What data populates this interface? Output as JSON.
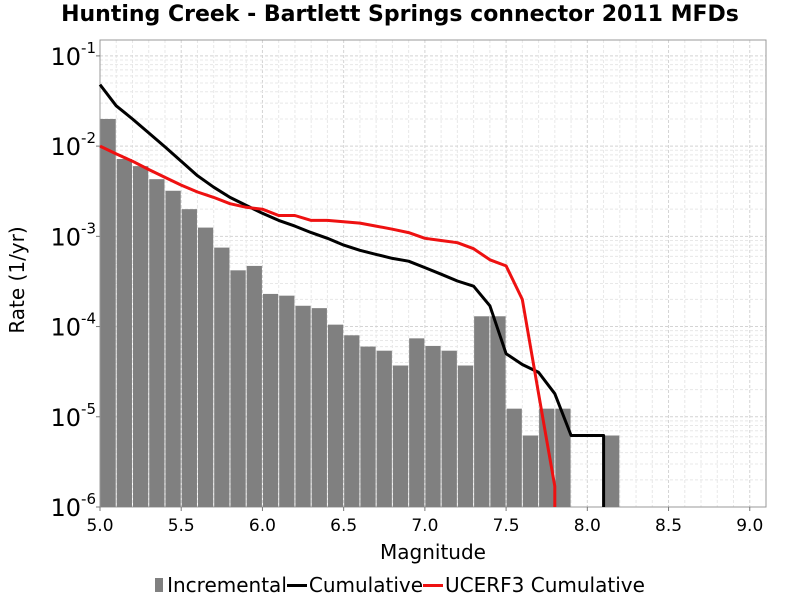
{
  "chart_data": {
    "type": "bar",
    "title": "Hunting Creek - Bartlett Springs connector 2011 MFDs",
    "xlabel": "Magnitude",
    "ylabel": "Rate (1/yr)",
    "xlim": [
      5.0,
      9.1
    ],
    "ylim": [
      1e-06,
      0.15
    ],
    "yscale": "log",
    "grid": true,
    "legend_position": "bottom",
    "x_ticks": [
      "5.0",
      "5.5",
      "6.0",
      "6.5",
      "7.0",
      "7.5",
      "8.0",
      "8.5",
      "9.0"
    ],
    "y_ticks": [
      {
        "base": "10",
        "exp": "-6",
        "value": 1e-06
      },
      {
        "base": "10",
        "exp": "-5",
        "value": 1e-05
      },
      {
        "base": "10",
        "exp": "-4",
        "value": 0.0001
      },
      {
        "base": "10",
        "exp": "-3",
        "value": 0.001
      },
      {
        "base": "10",
        "exp": "-2",
        "value": 0.01
      },
      {
        "base": "10",
        "exp": "-1",
        "value": 0.1
      }
    ],
    "bar_width": 0.1,
    "series": [
      {
        "name": "Incremental",
        "kind": "bar",
        "color": "#808080",
        "x": [
          5.05,
          5.15,
          5.25,
          5.35,
          5.45,
          5.55,
          5.65,
          5.75,
          5.85,
          5.95,
          6.05,
          6.15,
          6.25,
          6.35,
          6.45,
          6.55,
          6.65,
          6.75,
          6.85,
          6.95,
          7.05,
          7.15,
          7.25,
          7.35,
          7.45,
          7.55,
          7.65,
          7.75,
          7.85,
          7.95,
          8.05,
          8.15
        ],
        "values": [
          0.02,
          0.0072,
          0.006,
          0.0043,
          0.0032,
          0.002,
          0.00125,
          0.00075,
          0.00042,
          0.00047,
          0.00023,
          0.00022,
          0.00017,
          0.00016,
          0.000105,
          8e-05,
          6e-05,
          5.4e-05,
          3.7e-05,
          7.4e-05,
          6.1e-05,
          5.4e-05,
          3.7e-05,
          0.00013,
          0.00013,
          1.23e-05,
          6.2e-06,
          1.23e-05,
          1.23e-05,
          0,
          0,
          6.2e-06
        ]
      },
      {
        "name": "Cumulative",
        "kind": "line",
        "color": "#000000",
        "x": [
          5.0,
          5.1,
          5.2,
          5.3,
          5.4,
          5.5,
          5.6,
          5.7,
          5.8,
          5.9,
          6.0,
          6.1,
          6.2,
          6.3,
          6.4,
          6.5,
          6.6,
          6.7,
          6.8,
          6.9,
          7.0,
          7.1,
          7.2,
          7.3,
          7.4,
          7.5,
          7.6,
          7.7,
          7.8,
          7.9,
          8.0,
          8.1,
          8.1
        ],
        "values": [
          0.048,
          0.028,
          0.02,
          0.014,
          0.0098,
          0.0068,
          0.0047,
          0.0035,
          0.0027,
          0.0022,
          0.0018,
          0.0015,
          0.0013,
          0.0011,
          0.00095,
          0.0008,
          0.0007,
          0.00063,
          0.00057,
          0.00053,
          0.00045,
          0.00038,
          0.00032,
          0.00028,
          0.00017,
          5e-05,
          3.8e-05,
          3.1e-05,
          1.8e-05,
          6.2e-06,
          6.2e-06,
          6.2e-06,
          1e-06
        ]
      },
      {
        "name": "UCERF3 Cumulative",
        "kind": "line",
        "color": "#ee1111",
        "x": [
          5.0,
          5.1,
          5.2,
          5.3,
          5.4,
          5.5,
          5.6,
          5.7,
          5.8,
          5.9,
          6.0,
          6.1,
          6.2,
          6.3,
          6.4,
          6.5,
          6.6,
          6.7,
          6.8,
          6.9,
          7.0,
          7.1,
          7.2,
          7.3,
          7.4,
          7.5,
          7.6,
          7.7,
          7.75,
          7.8,
          7.8
        ],
        "values": [
          0.01,
          0.0082,
          0.0068,
          0.0055,
          0.0045,
          0.0037,
          0.0031,
          0.0027,
          0.0023,
          0.0021,
          0.002,
          0.0017,
          0.0017,
          0.0015,
          0.0015,
          0.00145,
          0.0014,
          0.0013,
          0.0012,
          0.0011,
          0.00095,
          0.0009,
          0.00085,
          0.00073,
          0.00055,
          0.00047,
          0.0002,
          1.8e-05,
          5.5e-06,
          1.7e-06,
          1e-06
        ]
      }
    ]
  },
  "legend": {
    "items": [
      {
        "label": "Incremental",
        "color": "#808080",
        "shape": "box"
      },
      {
        "label": "Cumulative",
        "color": "#000000",
        "shape": "line"
      },
      {
        "label": "UCERF3 Cumulative",
        "color": "#ee1111",
        "shape": "line"
      }
    ]
  }
}
